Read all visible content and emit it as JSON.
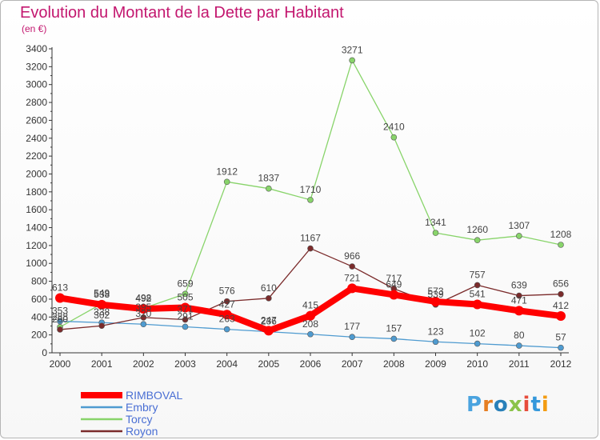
{
  "title": "Evolution du Montant de la Dette par Habitant",
  "subtitle": "(en €)",
  "logo": {
    "text": "Proxiti",
    "letter_colors": [
      "#4aa3df",
      "#e67e22",
      "#2980b9",
      "#8bc34a",
      "#e74c3c",
      "#3498db",
      "#f39c12"
    ]
  },
  "chart_data": {
    "type": "line",
    "title": "Evolution du Montant de la Dette par Habitant",
    "subtitle": "(en €)",
    "xlabel": "",
    "ylabel": "",
    "x": [
      "2000",
      "2001",
      "2002",
      "2003",
      "2004",
      "2005",
      "2006",
      "2007",
      "2008",
      "2009",
      "2010",
      "2011",
      "2012"
    ],
    "ylim": [
      0,
      3400
    ],
    "yticks": [
      0,
      200,
      400,
      600,
      800,
      1000,
      1200,
      1400,
      1600,
      1800,
      2000,
      2200,
      2400,
      2600,
      2800,
      3000,
      3200,
      3400
    ],
    "grid": false,
    "legend_position": "bottom-left",
    "series": [
      {
        "name": "RIMBOVAL",
        "color": "#ff0000",
        "values": [
          613,
          538,
          492,
          505,
          427,
          247,
          415,
          721,
          649,
          573,
          541,
          471,
          412
        ],
        "labels": [
          "613",
          "538",
          "492",
          "505",
          "427",
          "247",
          "415",
          "721",
          "649",
          "573",
          "541",
          "471",
          "412"
        ]
      },
      {
        "name": "Embry",
        "color": "#4f9bd0",
        "values": [
          353,
          338,
          320,
          291,
          263,
          236,
          208,
          177,
          157,
          123,
          102,
          80,
          57
        ],
        "labels": [
          "353",
          "338",
          "320",
          "291",
          "263",
          "236",
          "208",
          "177",
          "157",
          "123",
          "102",
          "80",
          "57"
        ]
      },
      {
        "name": "Torcy",
        "color": "#88d46a",
        "values": [
          288,
          549,
          498,
          659,
          1912,
          1837,
          1710,
          3271,
          2410,
          1341,
          1260,
          1307,
          1208
        ],
        "labels": [
          "288",
          "549",
          "498",
          "659",
          "1912",
          "1837",
          "1710",
          "3271",
          "2410",
          "1341",
          "1260",
          "1307",
          "1208"
        ]
      },
      {
        "name": "Royon",
        "color": "#7b2b2b",
        "values": [
          260,
          302,
          395,
          371,
          576,
          610,
          1167,
          966,
          717,
          539,
          757,
          639,
          656
        ],
        "labels": [
          "260",
          "302",
          "395",
          "371",
          "576",
          "610",
          "1167",
          "966",
          "717",
          "539",
          "757",
          "639",
          "656"
        ]
      }
    ]
  }
}
